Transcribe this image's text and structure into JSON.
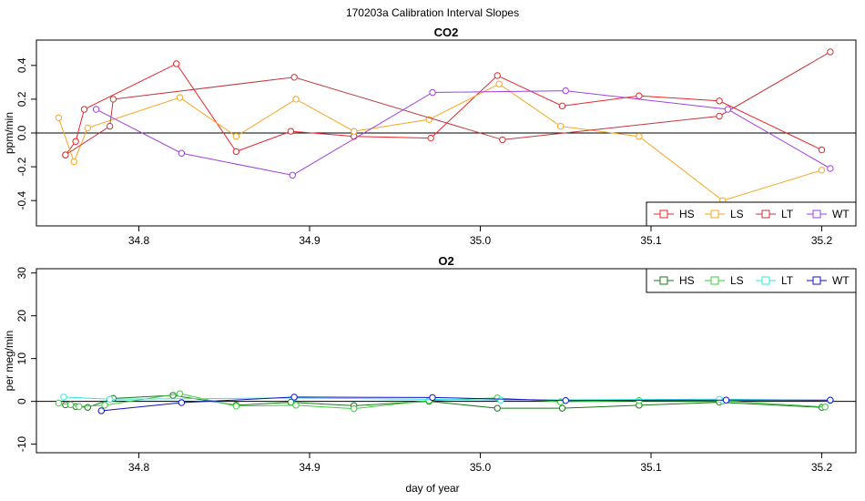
{
  "title": "170203a   Calibration Interval Slopes",
  "xlabel": "day of year",
  "chart_data": [
    {
      "type": "line",
      "title": "CO2",
      "ylabel": "ppm/min",
      "xlim": [
        34.74,
        35.22
      ],
      "ylim": [
        -0.55,
        0.55
      ],
      "x_ticks": [
        34.8,
        34.9,
        35.0,
        35.1,
        35.2
      ],
      "x_tick_labels": [
        "34.8",
        "34.9",
        "35.0",
        "35.1",
        "35.2"
      ],
      "y_ticks": [
        -0.4,
        -0.2,
        0.0,
        0.2,
        0.4
      ],
      "y_tick_labels": [
        "-0.4",
        "-0.2",
        "0.0",
        "0.2",
        "0.4"
      ],
      "hline": 0,
      "legend_position": "bottom-right",
      "series": [
        {
          "name": "HS",
          "color": "#e8252a",
          "x": [
            34.757,
            34.763,
            34.768,
            34.822,
            34.857,
            34.889,
            34.926,
            34.971,
            35.01,
            35.048,
            35.093,
            35.14,
            35.2
          ],
          "y": [
            -0.13,
            -0.05,
            0.14,
            0.41,
            -0.11,
            0.01,
            -0.02,
            -0.03,
            0.34,
            0.16,
            0.22,
            0.19,
            -0.1
          ]
        },
        {
          "name": "LS",
          "color": "#f5a623",
          "x": [
            34.753,
            34.762,
            34.77,
            34.824,
            34.857,
            34.892,
            34.926,
            34.97,
            35.011,
            35.047,
            35.093,
            35.142,
            35.2
          ],
          "y": [
            0.09,
            -0.17,
            0.03,
            0.21,
            -0.02,
            0.2,
            0.01,
            0.08,
            0.29,
            0.04,
            -0.02,
            -0.4,
            -0.22
          ]
        },
        {
          "name": "LT",
          "color": "#c0393b",
          "x": [
            34.757,
            34.783,
            34.785,
            34.891,
            35.013,
            35.14,
            35.205
          ],
          "y": [
            -0.13,
            0.04,
            0.2,
            0.33,
            -0.04,
            0.1,
            0.48
          ]
        },
        {
          "name": "WT",
          "color": "#a040e0",
          "x": [
            34.775,
            34.825,
            34.89,
            34.972,
            35.05,
            35.145,
            35.205
          ],
          "y": [
            0.14,
            -0.12,
            -0.25,
            0.24,
            0.25,
            0.14,
            -0.21
          ]
        }
      ]
    },
    {
      "type": "line",
      "title": "O2",
      "ylabel": "per meg/min",
      "xlim": [
        34.74,
        35.22
      ],
      "ylim": [
        -12,
        31
      ],
      "x_ticks": [
        34.8,
        34.9,
        35.0,
        35.1,
        35.2
      ],
      "x_tick_labels": [
        "34.8",
        "34.9",
        "35.0",
        "35.1",
        "35.2"
      ],
      "y_ticks": [
        -10,
        0,
        10,
        20,
        30
      ],
      "y_tick_labels": [
        "-10",
        "0",
        "10",
        "20",
        "30"
      ],
      "hline": 0,
      "legend_position": "top-right",
      "series": [
        {
          "name": "HS",
          "color": "#1a7a1a",
          "x": [
            34.757,
            34.763,
            34.77,
            34.785,
            34.82,
            34.857,
            34.889,
            34.926,
            34.97,
            35.01,
            35.048,
            35.093,
            35.14,
            35.2
          ],
          "y": [
            -0.8,
            -1.2,
            -1.4,
            0.7,
            1.4,
            -0.9,
            -0.2,
            -1.0,
            0.0,
            -1.6,
            -1.6,
            -0.9,
            -0.2,
            -1.4
          ]
        },
        {
          "name": "LS",
          "color": "#3ccd3c",
          "x": [
            34.753,
            34.76,
            34.765,
            34.78,
            34.824,
            34.857,
            34.892,
            34.926,
            34.97,
            35.01,
            35.047,
            35.093,
            35.142,
            35.202
          ],
          "y": [
            -0.4,
            -0.8,
            -1.2,
            -0.9,
            1.8,
            -1.1,
            -0.9,
            -1.7,
            0.2,
            0.8,
            -0.1,
            0.2,
            0.1,
            -1.3
          ]
        },
        {
          "name": "LT",
          "color": "#33e6e6",
          "x": [
            34.756,
            34.783,
            34.891,
            35.012,
            35.14,
            35.205
          ],
          "y": [
            1.0,
            0.5,
            0.8,
            0.3,
            0.5,
            0.2
          ]
        },
        {
          "name": "WT",
          "color": "#1010c8",
          "x": [
            34.778,
            34.825,
            34.891,
            34.972,
            35.05,
            35.144,
            35.205
          ],
          "y": [
            -2.2,
            -0.3,
            1.0,
            0.9,
            0.2,
            0.3,
            0.3
          ]
        }
      ]
    }
  ]
}
